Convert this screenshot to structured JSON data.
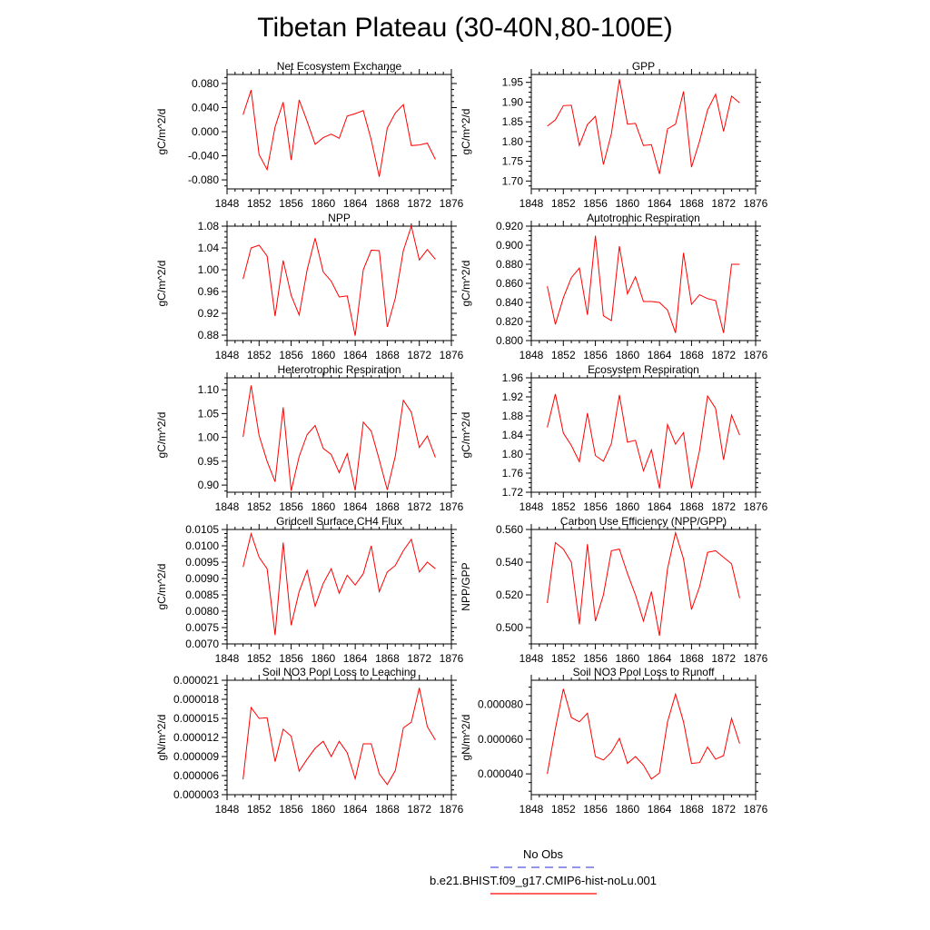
{
  "title": "Tibetan Plateau (30-40N,80-100E)",
  "legend": [
    {
      "label": "No Obs",
      "color": "#5555dd",
      "dash": true
    },
    {
      "label": "b.e21.BHIST.f09_g17.CMIP6-hist-noLu.001",
      "color": "#ff0000",
      "dash": false
    }
  ],
  "chart_data": [
    {
      "type": "line",
      "title": "Net Ecosystem Exchange",
      "ylabel": "gC/m^2/d",
      "xlim": [
        1848,
        1876
      ],
      "xticks": [
        1848,
        1852,
        1856,
        1860,
        1864,
        1868,
        1872,
        1876
      ],
      "ylim": [
        -0.095,
        0.095
      ],
      "yticks": [
        -0.08,
        -0.04,
        0.0,
        0.04,
        0.08
      ],
      "ytick_labels": [
        "-0.080",
        "-0.040",
        "0.000",
        "0.040",
        "0.080"
      ],
      "series": [
        {
          "color": "#ff0000",
          "x": [
            1850,
            1851,
            1852,
            1853,
            1854,
            1855,
            1856,
            1857,
            1858,
            1859,
            1860,
            1861,
            1862,
            1863,
            1864,
            1865,
            1866,
            1867,
            1868,
            1869,
            1870,
            1871,
            1872,
            1873,
            1874
          ],
          "values": [
            0.028,
            0.069,
            -0.038,
            -0.063,
            0.008,
            0.049,
            -0.047,
            0.053,
            0.017,
            -0.021,
            -0.01,
            -0.004,
            -0.011,
            0.026,
            0.03,
            0.035,
            -0.014,
            -0.075,
            0.006,
            0.031,
            0.045,
            -0.023,
            -0.022,
            -0.019,
            -0.046
          ]
        }
      ]
    },
    {
      "type": "line",
      "title": "GPP",
      "ylabel": "gC/m^2/d",
      "xlim": [
        1848,
        1876
      ],
      "xticks": [
        1848,
        1852,
        1856,
        1860,
        1864,
        1868,
        1872,
        1876
      ],
      "ylim": [
        1.68,
        1.97
      ],
      "yticks": [
        1.7,
        1.75,
        1.8,
        1.85,
        1.9,
        1.95
      ],
      "ytick_labels": [
        "1.70",
        "1.75",
        "1.80",
        "1.85",
        "1.90",
        "1.95"
      ],
      "series": [
        {
          "color": "#ff0000",
          "x": [
            1850,
            1851,
            1852,
            1853,
            1854,
            1855,
            1856,
            1857,
            1858,
            1859,
            1860,
            1861,
            1862,
            1863,
            1864,
            1865,
            1866,
            1867,
            1868,
            1869,
            1870,
            1871,
            1872,
            1873,
            1874
          ],
          "values": [
            1.839,
            1.855,
            1.891,
            1.892,
            1.79,
            1.843,
            1.864,
            1.742,
            1.82,
            1.958,
            1.844,
            1.846,
            1.79,
            1.792,
            1.718,
            1.832,
            1.844,
            1.927,
            1.735,
            1.801,
            1.88,
            1.92,
            1.826,
            1.915,
            1.898
          ]
        }
      ]
    },
    {
      "type": "line",
      "title": "NPP",
      "ylabel": "gC/m^2/d",
      "xlim": [
        1848,
        1876
      ],
      "xticks": [
        1848,
        1852,
        1856,
        1860,
        1864,
        1868,
        1872,
        1876
      ],
      "ylim": [
        0.87,
        1.08
      ],
      "yticks": [
        0.88,
        0.92,
        0.96,
        1.0,
        1.04,
        1.08
      ],
      "ytick_labels": [
        "0.88",
        "0.92",
        "0.96",
        "1.00",
        "1.04",
        "1.08"
      ],
      "series": [
        {
          "color": "#ff0000",
          "x": [
            1850,
            1851,
            1852,
            1853,
            1854,
            1855,
            1856,
            1857,
            1858,
            1859,
            1860,
            1861,
            1862,
            1863,
            1864,
            1865,
            1866,
            1867,
            1868,
            1869,
            1870,
            1871,
            1872,
            1873,
            1874
          ],
          "values": [
            0.983,
            1.04,
            1.045,
            1.025,
            0.915,
            1.017,
            0.953,
            0.917,
            1.0,
            1.058,
            0.996,
            0.979,
            0.95,
            0.952,
            0.879,
            1.0,
            1.036,
            1.035,
            0.895,
            0.948,
            1.035,
            1.08,
            1.018,
            1.037,
            1.019
          ]
        }
      ]
    },
    {
      "type": "line",
      "title": "Autotrophic Respiration",
      "ylabel": "gC/m^2/d",
      "xlim": [
        1848,
        1876
      ],
      "xticks": [
        1848,
        1852,
        1856,
        1860,
        1864,
        1868,
        1872,
        1876
      ],
      "ylim": [
        0.8,
        0.92
      ],
      "yticks": [
        0.8,
        0.82,
        0.84,
        0.86,
        0.88,
        0.9,
        0.92
      ],
      "ytick_labels": [
        "0.800",
        "0.820",
        "0.840",
        "0.860",
        "0.880",
        "0.900",
        "0.920"
      ],
      "series": [
        {
          "color": "#ff0000",
          "x": [
            1850,
            1851,
            1852,
            1853,
            1854,
            1855,
            1856,
            1857,
            1858,
            1859,
            1860,
            1861,
            1862,
            1863,
            1864,
            1865,
            1866,
            1867,
            1868,
            1869,
            1870,
            1871,
            1872,
            1873,
            1874
          ],
          "values": [
            0.857,
            0.817,
            0.845,
            0.866,
            0.876,
            0.827,
            0.91,
            0.826,
            0.821,
            0.899,
            0.849,
            0.867,
            0.841,
            0.841,
            0.84,
            0.832,
            0.808,
            0.892,
            0.838,
            0.848,
            0.844,
            0.842,
            0.808,
            0.88,
            0.88
          ]
        }
      ]
    },
    {
      "type": "line",
      "title": "Heterotrophic Respiration",
      "ylabel": "gC/m^2/d",
      "xlim": [
        1848,
        1876
      ],
      "xticks": [
        1848,
        1852,
        1856,
        1860,
        1864,
        1868,
        1872,
        1876
      ],
      "ylim": [
        0.885,
        1.125
      ],
      "yticks": [
        0.9,
        0.95,
        1.0,
        1.05,
        1.1
      ],
      "ytick_labels": [
        "0.90",
        "0.95",
        "1.00",
        "1.05",
        "1.10"
      ],
      "series": [
        {
          "color": "#ff0000",
          "x": [
            1850,
            1851,
            1852,
            1853,
            1854,
            1855,
            1856,
            1857,
            1858,
            1859,
            1860,
            1861,
            1862,
            1863,
            1864,
            1865,
            1866,
            1867,
            1868,
            1869,
            1870,
            1871,
            1872,
            1873,
            1874
          ],
          "values": [
            1.001,
            1.109,
            1.004,
            0.95,
            0.907,
            1.063,
            0.888,
            0.96,
            1.006,
            1.025,
            0.977,
            0.964,
            0.926,
            0.966,
            0.889,
            1.032,
            1.013,
            0.953,
            0.89,
            0.961,
            1.078,
            1.053,
            0.979,
            1.003,
            0.958
          ]
        }
      ]
    },
    {
      "type": "line",
      "title": "Ecosystem Respiration",
      "ylabel": "gC/m^2/d",
      "xlim": [
        1848,
        1876
      ],
      "xticks": [
        1848,
        1852,
        1856,
        1860,
        1864,
        1868,
        1872,
        1876
      ],
      "ylim": [
        1.72,
        1.96
      ],
      "yticks": [
        1.72,
        1.76,
        1.8,
        1.84,
        1.88,
        1.92,
        1.96
      ],
      "ytick_labels": [
        "1.72",
        "1.76",
        "1.80",
        "1.84",
        "1.88",
        "1.92",
        "1.96"
      ],
      "series": [
        {
          "color": "#ff0000",
          "x": [
            1850,
            1851,
            1852,
            1853,
            1854,
            1855,
            1856,
            1857,
            1858,
            1859,
            1860,
            1861,
            1862,
            1863,
            1864,
            1865,
            1866,
            1867,
            1868,
            1869,
            1870,
            1871,
            1872,
            1873,
            1874
          ],
          "values": [
            1.856,
            1.926,
            1.844,
            1.818,
            1.784,
            1.886,
            1.797,
            1.785,
            1.822,
            1.924,
            1.825,
            1.829,
            1.765,
            1.809,
            1.728,
            1.862,
            1.821,
            1.845,
            1.728,
            1.808,
            1.922,
            1.896,
            1.788,
            1.882,
            1.84
          ]
        }
      ]
    },
    {
      "type": "line",
      "title": "Gridcell Surface CH4 Flux",
      "ylabel": "gC/m^2/d",
      "xlim": [
        1848,
        1876
      ],
      "xticks": [
        1848,
        1852,
        1856,
        1860,
        1864,
        1868,
        1872,
        1876
      ],
      "ylim": [
        0.007,
        0.0105
      ],
      "yticks": [
        0.007,
        0.0075,
        0.008,
        0.0085,
        0.009,
        0.0095,
        0.01,
        0.0105
      ],
      "ytick_labels": [
        "0.0070",
        "0.0075",
        "0.0080",
        "0.0085",
        "0.0090",
        "0.0095",
        "0.0100",
        "0.0105"
      ],
      "series": [
        {
          "color": "#ff0000",
          "x": [
            1850,
            1851,
            1852,
            1853,
            1854,
            1855,
            1856,
            1857,
            1858,
            1859,
            1860,
            1861,
            1862,
            1863,
            1864,
            1865,
            1866,
            1867,
            1868,
            1869,
            1870,
            1871,
            1872,
            1873,
            1874
          ],
          "values": [
            0.00935,
            0.01037,
            0.00965,
            0.0093,
            0.00727,
            0.0101,
            0.00757,
            0.0086,
            0.00925,
            0.00815,
            0.00885,
            0.0093,
            0.00855,
            0.0091,
            0.0088,
            0.00915,
            0.01,
            0.0086,
            0.0092,
            0.0094,
            0.00985,
            0.0102,
            0.0092,
            0.0095,
            0.0093
          ]
        }
      ]
    },
    {
      "type": "line",
      "title": "Carbon Use Efficiency (NPP/GPP)",
      "ylabel": "NPP/GPP",
      "xlim": [
        1848,
        1876
      ],
      "xticks": [
        1848,
        1852,
        1856,
        1860,
        1864,
        1868,
        1872,
        1876
      ],
      "ylim": [
        0.49,
        0.56
      ],
      "yticks": [
        0.5,
        0.52,
        0.54,
        0.56
      ],
      "ytick_labels": [
        "0.500",
        "0.520",
        "0.540",
        "0.560"
      ],
      "series": [
        {
          "color": "#ff0000",
          "x": [
            1850,
            1851,
            1852,
            1853,
            1854,
            1855,
            1856,
            1857,
            1858,
            1859,
            1860,
            1861,
            1862,
            1863,
            1864,
            1865,
            1866,
            1867,
            1868,
            1869,
            1870,
            1871,
            1872,
            1873,
            1874
          ],
          "values": [
            0.515,
            0.552,
            0.548,
            0.54,
            0.502,
            0.551,
            0.504,
            0.52,
            0.547,
            0.548,
            0.533,
            0.52,
            0.504,
            0.522,
            0.495,
            0.536,
            0.558,
            0.542,
            0.511,
            0.525,
            0.546,
            0.547,
            0.543,
            0.539,
            0.518
          ]
        }
      ]
    },
    {
      "type": "line",
      "title": "Soil NO3 Pool Loss to Leaching",
      "ylabel": "gN/m^2/d",
      "xlim": [
        1848,
        1876
      ],
      "xticks": [
        1848,
        1852,
        1856,
        1860,
        1864,
        1868,
        1872,
        1876
      ],
      "ylim": [
        3e-06,
        2.1e-05
      ],
      "yticks": [
        3e-06,
        6e-06,
        9e-06,
        1.2e-05,
        1.5e-05,
        1.8e-05,
        2.1e-05
      ],
      "ytick_labels": [
        "0.000003",
        "0.000006",
        "0.000009",
        "0.000012",
        "0.000015",
        "0.000018",
        "0.000021"
      ],
      "series": [
        {
          "color": "#ff0000",
          "x": [
            1850,
            1851,
            1852,
            1853,
            1854,
            1855,
            1856,
            1857,
            1858,
            1859,
            1860,
            1861,
            1862,
            1863,
            1864,
            1865,
            1866,
            1867,
            1868,
            1869,
            1870,
            1871,
            1872,
            1873,
            1874
          ],
          "values": [
            5.4e-06,
            1.67e-05,
            1.5e-05,
            1.51e-05,
            8.2e-06,
            1.33e-05,
            1.22e-05,
            6.7e-06,
            8.6e-06,
            1.03e-05,
            1.14e-05,
            9e-06,
            1.14e-05,
            9.6e-06,
            5.5e-06,
            1.1e-05,
            1.1e-05,
            6.3e-06,
            4.6e-06,
            6.8e-06,
            1.35e-05,
            1.44e-05,
            1.98e-05,
            1.37e-05,
            1.16e-05
          ]
        }
      ]
    },
    {
      "type": "line",
      "title": "Soil NO3 Pool Loss to Runoff",
      "ylabel": "gN/m^2/d",
      "xlim": [
        1848,
        1876
      ],
      "xticks": [
        1848,
        1852,
        1856,
        1860,
        1864,
        1868,
        1872,
        1876
      ],
      "ylim": [
        2.8e-05,
        9.4e-05
      ],
      "yticks": [
        4e-05,
        6e-05,
        8e-05
      ],
      "ytick_labels": [
        "0.000040",
        "0.000060",
        "0.000080"
      ],
      "series": [
        {
          "color": "#ff0000",
          "x": [
            1850,
            1851,
            1852,
            1853,
            1854,
            1855,
            1856,
            1857,
            1858,
            1859,
            1860,
            1861,
            1862,
            1863,
            1864,
            1865,
            1866,
            1867,
            1868,
            1869,
            1870,
            1871,
            1872,
            1873,
            1874
          ],
          "values": [
            4e-05,
            6.6e-05,
            8.9e-05,
            7.25e-05,
            7e-05,
            7.5e-05,
            5e-05,
            4.8e-05,
            5.25e-05,
            6.05e-05,
            4.6e-05,
            5e-05,
            4.5e-05,
            3.7e-05,
            4.05e-05,
            7e-05,
            8.6e-05,
            7e-05,
            4.6e-05,
            4.65e-05,
            5.55e-05,
            4.85e-05,
            5.05e-05,
            7.2e-05,
            5.75e-05
          ]
        }
      ]
    }
  ]
}
